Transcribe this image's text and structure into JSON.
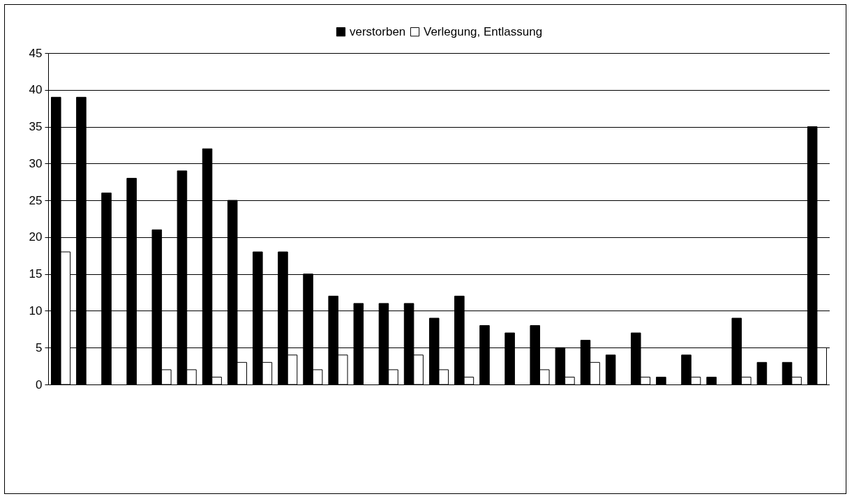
{
  "chart_data": {
    "type": "bar",
    "categories": [
      null,
      null,
      null,
      null,
      null,
      null,
      null,
      null,
      null,
      null,
      null,
      null,
      null,
      null,
      null,
      null,
      null,
      null,
      null,
      null,
      null,
      null,
      null,
      null,
      null,
      null,
      null,
      null,
      null,
      null,
      null
    ],
    "series": [
      {
        "name": "verstorben",
        "color": "#000000",
        "values": [
          39,
          39,
          26,
          28,
          21,
          29,
          32,
          25,
          18,
          18,
          15,
          12,
          11,
          11,
          11,
          9,
          12,
          8,
          7,
          8,
          5,
          6,
          4,
          7,
          1,
          4,
          1,
          9,
          3,
          3,
          35
        ]
      },
      {
        "name": "Verlegung, Entlassung",
        "color": "#ffffff",
        "values": [
          18,
          null,
          null,
          null,
          2,
          2,
          1,
          3,
          3,
          4,
          2,
          4,
          null,
          2,
          4,
          2,
          1,
          null,
          null,
          2,
          1,
          3,
          null,
          1,
          null,
          1,
          null,
          1,
          null,
          1,
          5
        ]
      }
    ],
    "ylim": [
      0,
      45
    ],
    "yticks": [
      0,
      5,
      10,
      15,
      20,
      25,
      30,
      35,
      40,
      45
    ],
    "grid": "y",
    "legend": "top",
    "tick_labels": "y"
  }
}
